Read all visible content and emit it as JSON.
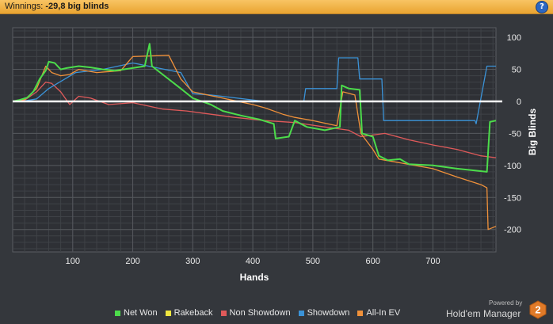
{
  "header": {
    "label": "Winnings:",
    "value": "-29,8 big blinds",
    "help": "?"
  },
  "chart_data": {
    "type": "line",
    "xlabel": "Hands",
    "ylabel": "Big Blinds",
    "xlim": [
      0,
      805
    ],
    "ylim": [
      -235,
      115
    ],
    "xticks": [
      100,
      200,
      300,
      400,
      500,
      600,
      700
    ],
    "yticks": [
      100,
      50,
      0,
      -50,
      -100,
      -150,
      -200
    ],
    "grid": true,
    "legend_position": "bottom",
    "series": [
      {
        "name": "Net Won",
        "color": "#4cdc4b",
        "x": [
          0,
          10,
          25,
          35,
          45,
          55,
          60,
          70,
          80,
          90,
          110,
          130,
          150,
          170,
          200,
          220,
          228,
          232,
          280,
          300,
          330,
          350,
          380,
          410,
          435,
          438,
          460,
          470,
          490,
          520,
          545,
          548,
          560,
          578,
          582,
          600,
          610,
          625,
          645,
          660,
          700,
          740,
          770,
          790,
          795,
          805
        ],
        "values": [
          0,
          2,
          6,
          16,
          35,
          48,
          62,
          60,
          50,
          52,
          55,
          53,
          50,
          48,
          52,
          55,
          90,
          55,
          20,
          5,
          -5,
          -15,
          -22,
          -28,
          -35,
          -58,
          -55,
          -30,
          -40,
          -45,
          -40,
          25,
          20,
          18,
          -50,
          -55,
          -85,
          -92,
          -90,
          -98,
          -100,
          -105,
          -108,
          -110,
          -32,
          -30
        ]
      },
      {
        "name": "Rakeback",
        "color": "#f0e640",
        "x": [
          0,
          805
        ],
        "values": [
          0,
          0
        ]
      },
      {
        "name": "Non Showdown",
        "color": "#e05a5a",
        "x": [
          0,
          20,
          40,
          55,
          65,
          80,
          95,
          110,
          130,
          160,
          200,
          250,
          290,
          330,
          370,
          420,
          470,
          520,
          560,
          580,
          620,
          660,
          700,
          740,
          780,
          805
        ],
        "values": [
          0,
          2,
          15,
          30,
          28,
          15,
          -5,
          8,
          5,
          -5,
          -2,
          -12,
          -15,
          -20,
          -25,
          -30,
          -33,
          -40,
          -45,
          -55,
          -50,
          -60,
          -68,
          -75,
          -85,
          -88
        ]
      },
      {
        "name": "Showdown",
        "color": "#3b93d8",
        "x": [
          0,
          15,
          40,
          60,
          105,
          150,
          200,
          280,
          300,
          330,
          420,
          455,
          485,
          488,
          540,
          543,
          575,
          578,
          615,
          618,
          770,
          772,
          790,
          805
        ],
        "values": [
          0,
          0,
          4,
          20,
          45,
          50,
          60,
          45,
          12,
          10,
          0,
          0,
          0,
          20,
          20,
          68,
          68,
          35,
          35,
          -30,
          -30,
          -35,
          55,
          55
        ]
      },
      {
        "name": "All-In EV",
        "color": "#f0913a",
        "x": [
          0,
          20,
          40,
          55,
          65,
          80,
          95,
          110,
          140,
          180,
          200,
          260,
          280,
          300,
          350,
          400,
          420,
          450,
          470,
          500,
          540,
          550,
          570,
          580,
          600,
          610,
          640,
          700,
          740,
          780,
          790,
          792,
          805
        ],
        "values": [
          0,
          3,
          20,
          55,
          45,
          40,
          42,
          50,
          45,
          48,
          70,
          72,
          35,
          15,
          5,
          -5,
          -10,
          -20,
          -25,
          -30,
          -38,
          15,
          10,
          -50,
          -75,
          -90,
          -95,
          -105,
          -118,
          -130,
          -135,
          -200,
          -195
        ]
      }
    ]
  },
  "footer": {
    "powered_by": "Powered by",
    "brand": "Hold'em Manager",
    "badge": "2"
  }
}
